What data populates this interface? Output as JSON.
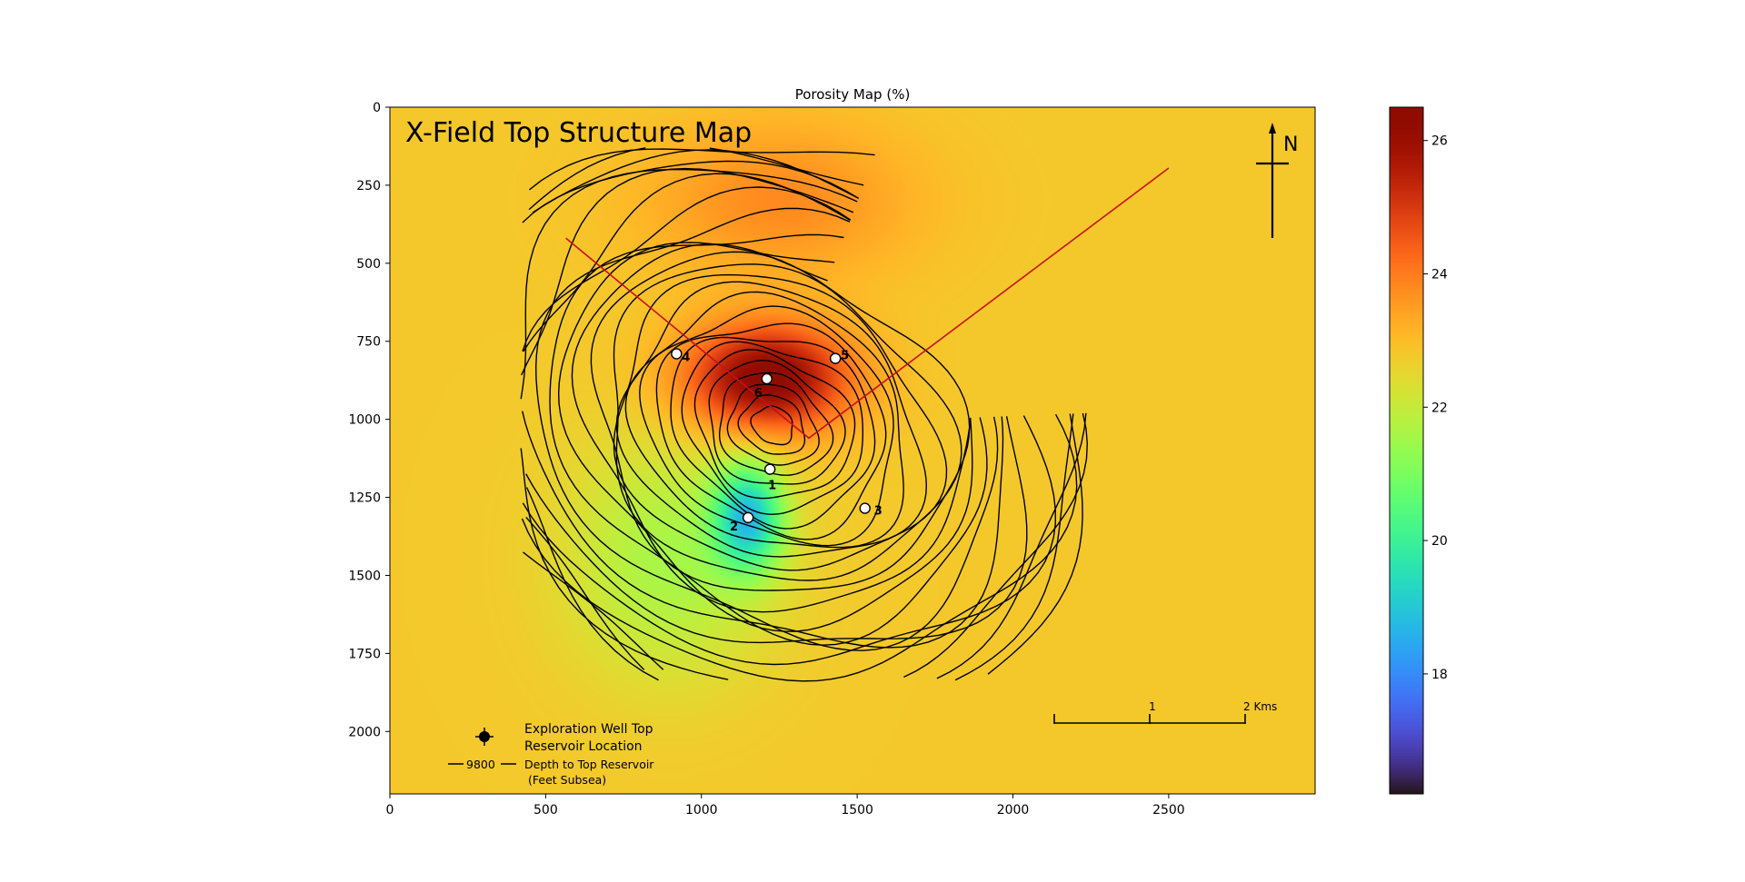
{
  "chart_data": {
    "type": "heatmap",
    "title": "Porosity Map (%)",
    "inset_title": "X-Field Top Structure Map",
    "xlim": [
      0,
      2970
    ],
    "ylim": [
      2200,
      0
    ],
    "x_ticks": [
      0,
      500,
      1000,
      1500,
      2000,
      2500
    ],
    "y_ticks": [
      0,
      250,
      500,
      750,
      1000,
      1250,
      1500,
      1750,
      2000
    ],
    "colorbar": {
      "range": [
        16.2,
        26.5
      ],
      "ticks": [
        18,
        20,
        22,
        24,
        26
      ],
      "colormap": "turbo"
    },
    "porosity_field": {
      "base": 22.8,
      "anomalies": [
        {
          "x": 1210,
          "y": 870,
          "amp": 3.7,
          "rx": 260,
          "ry": 170
        },
        {
          "x": 1250,
          "y": 300,
          "amp": 1.0,
          "rx": 420,
          "ry": 250
        },
        {
          "x": 1150,
          "y": 1315,
          "amp": -3.6,
          "rx": 110,
          "ry": 170
        },
        {
          "x": 900,
          "y": 1450,
          "amp": -1.2,
          "rx": 330,
          "ry": 380
        }
      ]
    },
    "wells": [
      {
        "id": "1",
        "x": 1220,
        "y": 1160
      },
      {
        "id": "2",
        "x": 1150,
        "y": 1315
      },
      {
        "id": "3",
        "x": 1525,
        "y": 1285
      },
      {
        "id": "4",
        "x": 920,
        "y": 790
      },
      {
        "id": "5",
        "x": 1430,
        "y": 805
      },
      {
        "id": "6",
        "x": 1210,
        "y": 870
      }
    ],
    "fault_line": [
      [
        565,
        420
      ],
      [
        1345,
        1060
      ],
      [
        2500,
        195
      ]
    ],
    "structure_center": {
      "x": 1230,
      "y": 1020
    },
    "legend": {
      "well_label_1": "Exploration Well Top",
      "well_label_2": "Reservoir Location",
      "contour_value": "9800",
      "contour_label_1": "Depth to Top Reservoir",
      "contour_label_2": "(Feet Subsea)"
    },
    "scale_bar": {
      "mid_label": "1",
      "end_label": "2 Kms"
    },
    "north_label": "N"
  },
  "colors": {
    "fault": "#c8101a",
    "contour": "#000000"
  }
}
